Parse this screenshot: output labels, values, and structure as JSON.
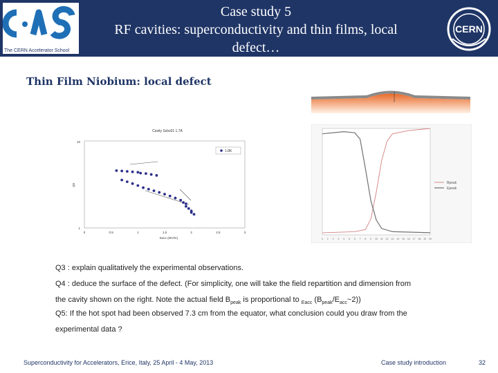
{
  "header": {
    "title_line1": "Case study 5",
    "title_line2": "RF cavities: superconductivity and thin films, local",
    "title_line3": "defect…",
    "school_tagline": "The CERN Accelerator School",
    "cern_logo_text": "CERN",
    "bg_color": "#1f3566"
  },
  "subtitle": "Thin Film Niobium: local defect",
  "chart_left": {
    "title": "Cavity Scbs01 1.7A",
    "legend": "1.8K",
    "xlabel": "Eacc (MV/m)",
    "ylabel": "Q0",
    "xticks": [
      "0",
      "0.5",
      "1",
      "1.5",
      "2",
      "2.5",
      "3"
    ],
    "yticks": [
      "10",
      "1"
    ]
  },
  "chart_right": {
    "legend": [
      "Bpeak",
      "Epeak"
    ],
    "xticks": [
      "0",
      "1",
      "2",
      "3",
      "4",
      "5",
      "6",
      "7",
      "8",
      "9",
      "10",
      "11",
      "12",
      "13",
      "14",
      "15",
      "16",
      "17",
      "18",
      "19",
      "20"
    ]
  },
  "questions": {
    "q3": "Q3 : explain qualitatively the experimental observations.",
    "q4_line1": "Q4 : deduce the surface of the defect. (For simplicity, one will take the field repartition and dimension from",
    "q4_line2_pre": "the cavity shown on the right. Note the actual field B",
    "q4_sub1": "peak",
    "q4_mid": " is proportional to ",
    "q4_sub2": "Eacc",
    "q4_paren_open": " (B",
    "q4_sub3": "peak",
    "q4_slash": "/E",
    "q4_sub4": "acc",
    "q4_end": "~2))",
    "q5_line1": "Q5: If the hot spot had been observed 7.3 cm from the equator, what conclusion could you draw from the",
    "q5_line2": "experimental data ?"
  },
  "footer": {
    "left": "Superconductivity for Accelerators, Erice, Italy, 25 April - 4 May, 2013",
    "center": "Case study introduction",
    "page": "32"
  },
  "chart_data": [
    {
      "type": "scatter",
      "title": "Cavity Scbs01 1.7A",
      "xlabel": "Eacc (MV/m)",
      "ylabel": "Q0",
      "xlim": [
        0,
        3
      ],
      "ylim": [
        1,
        20
      ],
      "series": [
        {
          "name": "1.8K",
          "points": [
            [
              0.6,
              7.2
            ],
            [
              0.7,
              7.1
            ],
            [
              0.8,
              7.0
            ],
            [
              0.9,
              6.9
            ],
            [
              1.0,
              6.8
            ],
            [
              1.05,
              6.6
            ],
            [
              1.15,
              6.5
            ],
            [
              1.25,
              6.3
            ],
            [
              1.35,
              6.1
            ],
            [
              0.7,
              5.2
            ],
            [
              0.8,
              4.9
            ],
            [
              0.9,
              4.6
            ],
            [
              1.0,
              4.3
            ],
            [
              1.1,
              4.0
            ],
            [
              1.2,
              3.8
            ],
            [
              1.3,
              3.6
            ],
            [
              1.4,
              3.4
            ],
            [
              1.5,
              3.2
            ],
            [
              1.6,
              3.0
            ],
            [
              1.7,
              2.8
            ],
            [
              1.8,
              2.6
            ],
            [
              1.85,
              2.4
            ],
            [
              1.9,
              2.3
            ],
            [
              1.9,
              2.1
            ],
            [
              1.95,
              1.95
            ],
            [
              2.0,
              1.8
            ],
            [
              2.0,
              1.7
            ],
            [
              2.05,
              1.6
            ]
          ]
        }
      ]
    },
    {
      "type": "line",
      "xlim": [
        0,
        20
      ],
      "ylim": [
        0,
        1
      ],
      "series": [
        {
          "name": "Bpeak",
          "points": [
            [
              0,
              0.02
            ],
            [
              6,
              0.03
            ],
            [
              8,
              0.05
            ],
            [
              9,
              0.15
            ],
            [
              10,
              0.4
            ],
            [
              11,
              0.7
            ],
            [
              12,
              0.88
            ],
            [
              13,
              0.95
            ],
            [
              16,
              0.98
            ],
            [
              20,
              1.0
            ]
          ]
        },
        {
          "name": "Epeak",
          "points": [
            [
              0,
              0.95
            ],
            [
              4,
              0.97
            ],
            [
              6,
              0.96
            ],
            [
              7,
              0.9
            ],
            [
              8,
              0.62
            ],
            [
              9,
              0.32
            ],
            [
              10,
              0.14
            ],
            [
              11,
              0.06
            ],
            [
              13,
              0.03
            ],
            [
              20,
              0.02
            ]
          ]
        }
      ]
    }
  ]
}
